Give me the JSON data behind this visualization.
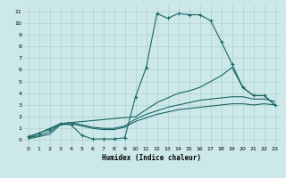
{
  "xlabel": "Humidex (Indice chaleur)",
  "xlim": [
    -0.5,
    23.5
  ],
  "ylim": [
    -0.5,
    11.5
  ],
  "xticks": [
    0,
    1,
    2,
    3,
    4,
    5,
    6,
    7,
    8,
    9,
    10,
    11,
    12,
    13,
    14,
    15,
    16,
    17,
    18,
    19,
    20,
    21,
    22,
    23
  ],
  "yticks": [
    0,
    1,
    2,
    3,
    4,
    5,
    6,
    7,
    8,
    9,
    10,
    11
  ],
  "bg_color": "#cce8e8",
  "grid_color": "#b0d0d0",
  "line_color": "#1a6666",
  "curve_main": {
    "x": [
      0,
      1,
      2,
      3,
      4,
      5,
      6,
      7,
      8,
      9,
      10,
      11,
      12,
      13,
      14,
      15,
      16,
      17,
      18,
      19,
      20,
      21,
      22,
      23
    ],
    "y": [
      0.3,
      0.6,
      0.9,
      1.4,
      1.3,
      0.4,
      0.1,
      0.1,
      0.1,
      0.2,
      3.7,
      6.2,
      10.8,
      10.4,
      10.8,
      10.7,
      10.7,
      10.2,
      8.4,
      6.5,
      4.5,
      3.8,
      3.8,
      3.0
    ]
  },
  "curve_upper": {
    "x": [
      0,
      3,
      4,
      10,
      11,
      12,
      13,
      14,
      15,
      16,
      17,
      18,
      19,
      20,
      21,
      22,
      23
    ],
    "y": [
      0.2,
      1.4,
      1.5,
      2.0,
      2.6,
      3.2,
      3.6,
      4.0,
      4.2,
      4.5,
      5.0,
      5.5,
      6.2,
      4.5,
      3.8,
      3.8,
      3.0
    ]
  },
  "curve_mid": {
    "x": [
      0,
      1,
      2,
      3,
      4,
      5,
      6,
      7,
      8,
      9,
      10,
      11,
      12,
      13,
      14,
      15,
      16,
      17,
      18,
      19,
      20,
      21,
      22,
      23
    ],
    "y": [
      0.2,
      0.4,
      0.7,
      1.4,
      1.5,
      1.3,
      1.1,
      1.0,
      1.0,
      1.2,
      1.8,
      2.2,
      2.5,
      2.8,
      3.0,
      3.2,
      3.4,
      3.5,
      3.6,
      3.7,
      3.7,
      3.5,
      3.5,
      3.3
    ]
  },
  "curve_low": {
    "x": [
      0,
      1,
      2,
      3,
      4,
      5,
      6,
      7,
      8,
      9,
      10,
      11,
      12,
      13,
      14,
      15,
      16,
      17,
      18,
      19,
      20,
      21,
      22,
      23
    ],
    "y": [
      0.1,
      0.3,
      0.5,
      1.3,
      1.4,
      1.2,
      1.0,
      0.9,
      0.9,
      1.1,
      1.6,
      1.9,
      2.2,
      2.4,
      2.6,
      2.7,
      2.8,
      2.9,
      3.0,
      3.1,
      3.1,
      3.0,
      3.1,
      3.0
    ]
  }
}
